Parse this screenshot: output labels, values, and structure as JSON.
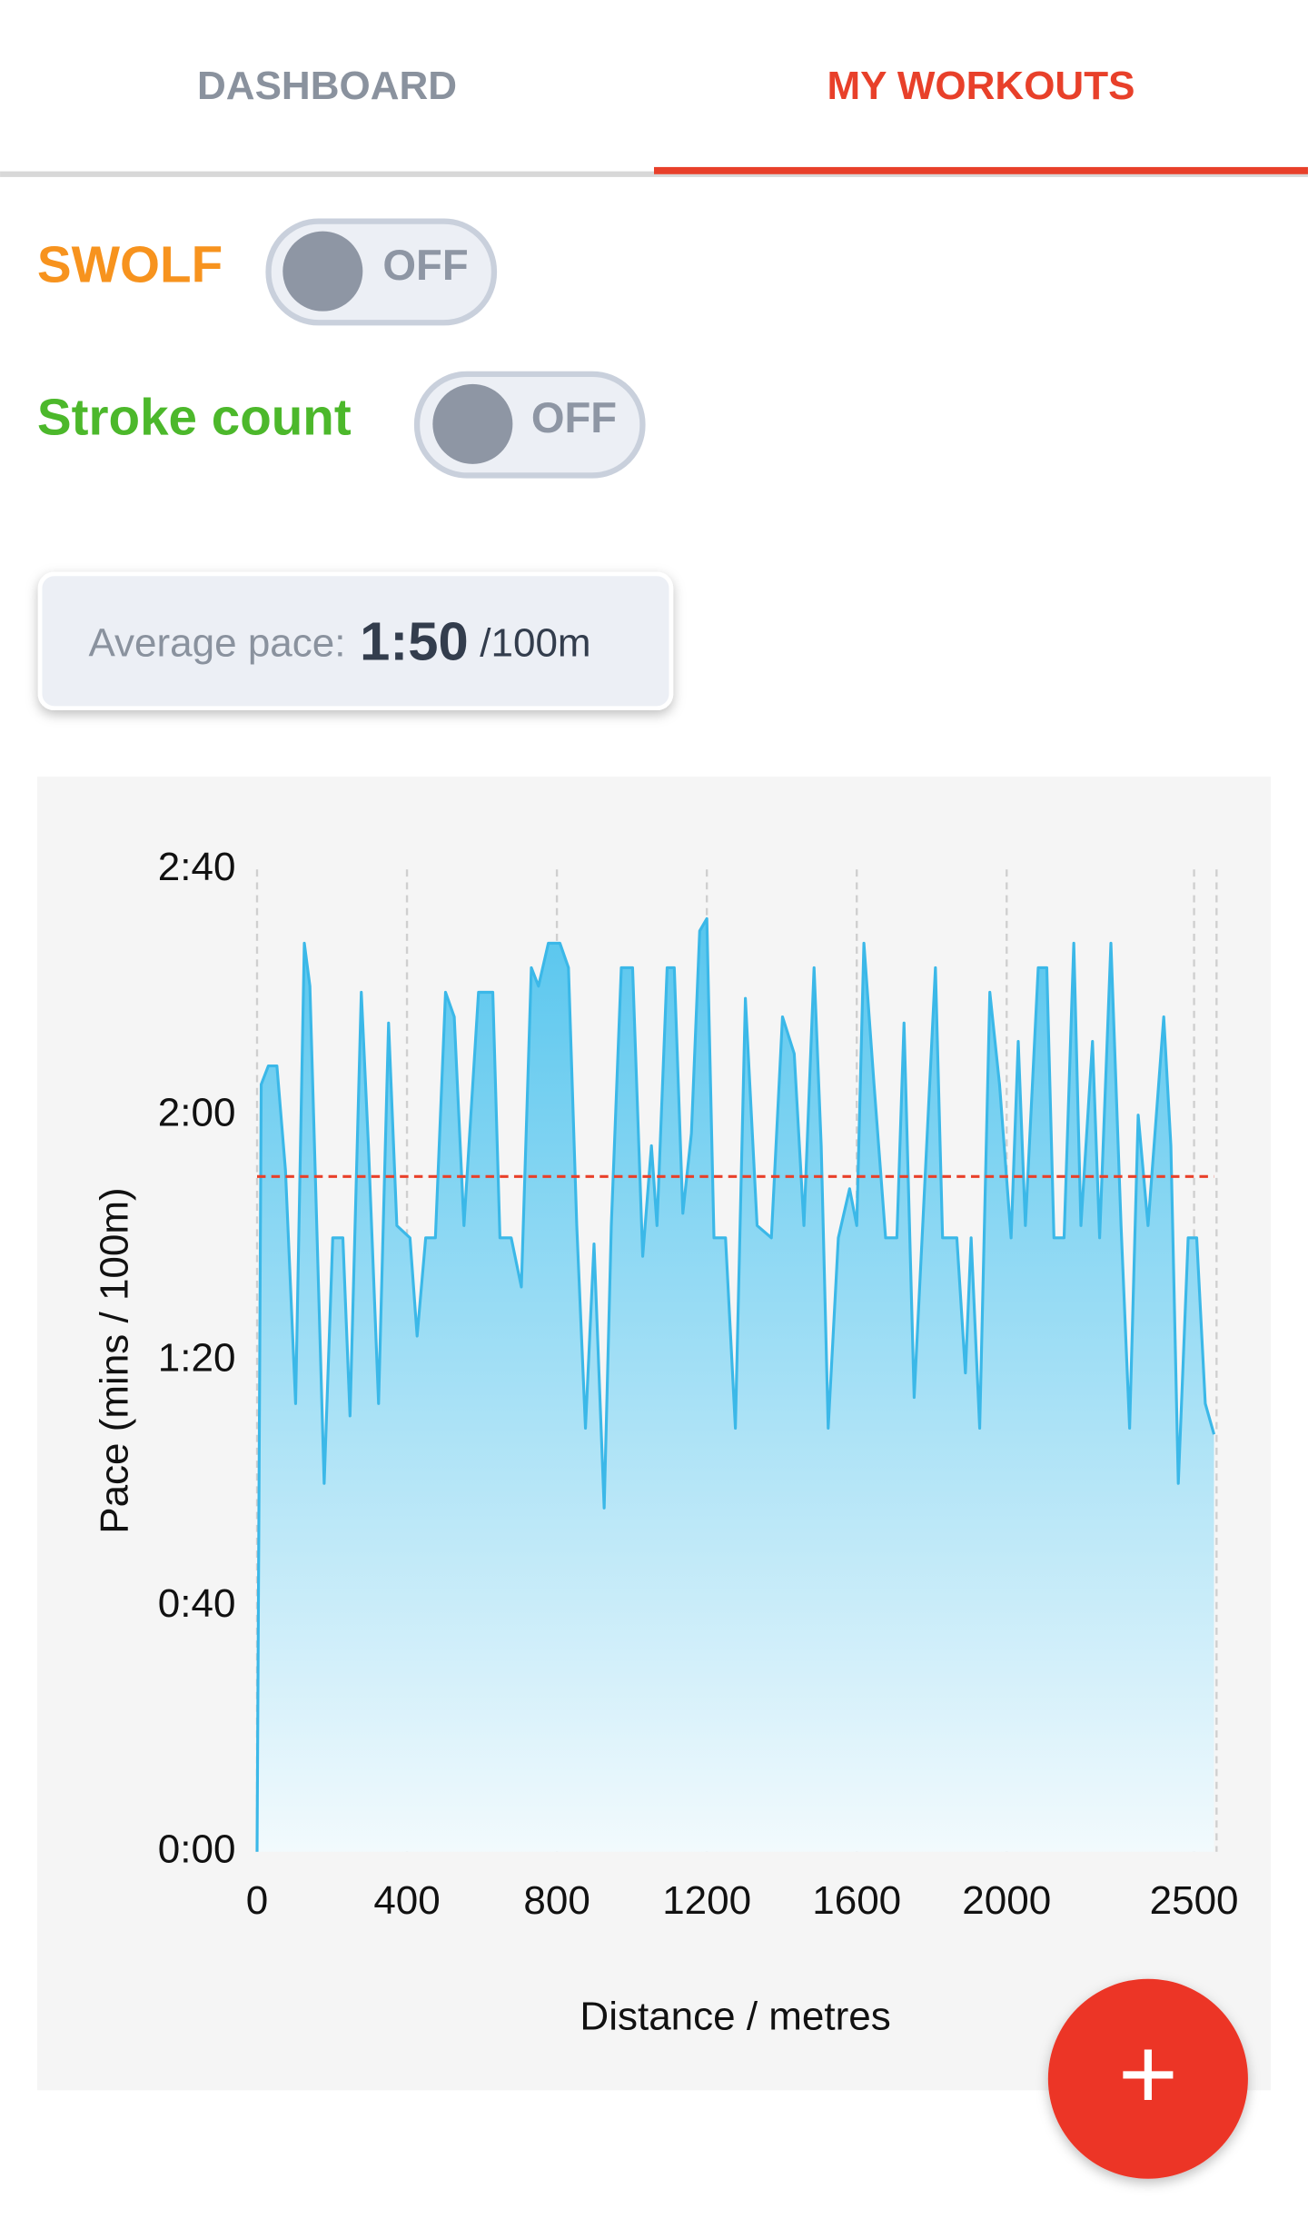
{
  "tabs": [
    "DASHBOARD",
    "MY WORKOUTS"
  ],
  "toggles": [
    {
      "label": "SWOLF",
      "state": "OFF"
    },
    {
      "label": "Stroke count",
      "state": "OFF"
    }
  ],
  "average_pace": {
    "label": "Average pace:",
    "value": "1:50",
    "unit": "/100m"
  },
  "chart_data": {
    "type": "area",
    "x_label": "Distance / metres",
    "y_label": "Pace (mins / 100m)",
    "color": "#3bb8e8",
    "average": 110,
    "average_color": "#e8402a",
    "xlim": [
      0,
      2560
    ],
    "xticks": [
      0,
      400,
      800,
      1200,
      1600,
      2000,
      2500
    ],
    "ylim": [
      0,
      160
    ],
    "yticks": [
      {
        "value": 0,
        "label": "0:00"
      },
      {
        "value": 40,
        "label": "0:40"
      },
      {
        "value": 80,
        "label": "1:20"
      },
      {
        "value": 120,
        "label": "2:00"
      },
      {
        "value": 160,
        "label": "2:40"
      }
    ],
    "grid": true,
    "x": [
      0,
      11,
      30,
      53,
      76,
      103,
      126,
      141,
      179,
      202,
      229,
      248,
      278,
      297,
      324,
      351,
      373,
      408,
      427,
      450,
      476,
      503,
      526,
      552,
      591,
      629,
      648,
      678,
      705,
      732,
      751,
      777,
      808,
      831,
      853,
      876,
      899,
      926,
      945,
      972,
      1002,
      1029,
      1052,
      1067,
      1094,
      1113,
      1136,
      1159,
      1181,
      1200,
      1219,
      1250,
      1276,
      1303,
      1334,
      1372,
      1402,
      1433,
      1459,
      1486,
      1505,
      1524,
      1551,
      1581,
      1600,
      1619,
      1646,
      1677,
      1707,
      1726,
      1753,
      1776,
      1810,
      1829,
      1867,
      1890,
      1905,
      1928,
      1955,
      1981,
      2012,
      2031,
      2050,
      2084,
      2107,
      2126,
      2153,
      2179,
      2198,
      2229,
      2248,
      2278,
      2305,
      2328,
      2351,
      2377,
      2419,
      2438,
      2458,
      2484,
      2507,
      2530,
      2553
    ],
    "values": [
      0,
      125,
      128,
      128,
      111,
      73,
      148,
      141,
      60,
      100,
      100,
      71,
      140,
      115,
      73,
      135,
      102,
      100,
      84,
      100,
      100,
      140,
      136,
      102,
      140,
      140,
      100,
      100,
      92,
      144,
      141,
      148,
      148,
      144,
      102,
      69,
      99,
      56,
      102,
      144,
      144,
      97,
      115,
      102,
      144,
      144,
      104,
      117,
      150,
      152,
      100,
      100,
      69,
      139,
      102,
      100,
      136,
      130,
      102,
      144,
      115,
      69,
      100,
      108,
      102,
      148,
      125,
      100,
      100,
      135,
      74,
      102,
      144,
      100,
      100,
      78,
      100,
      69,
      140,
      125,
      100,
      132,
      102,
      144,
      144,
      100,
      100,
      148,
      102,
      132,
      100,
      148,
      102,
      69,
      120,
      102,
      136,
      115,
      60,
      100,
      100,
      73,
      68
    ]
  },
  "fab": "+"
}
